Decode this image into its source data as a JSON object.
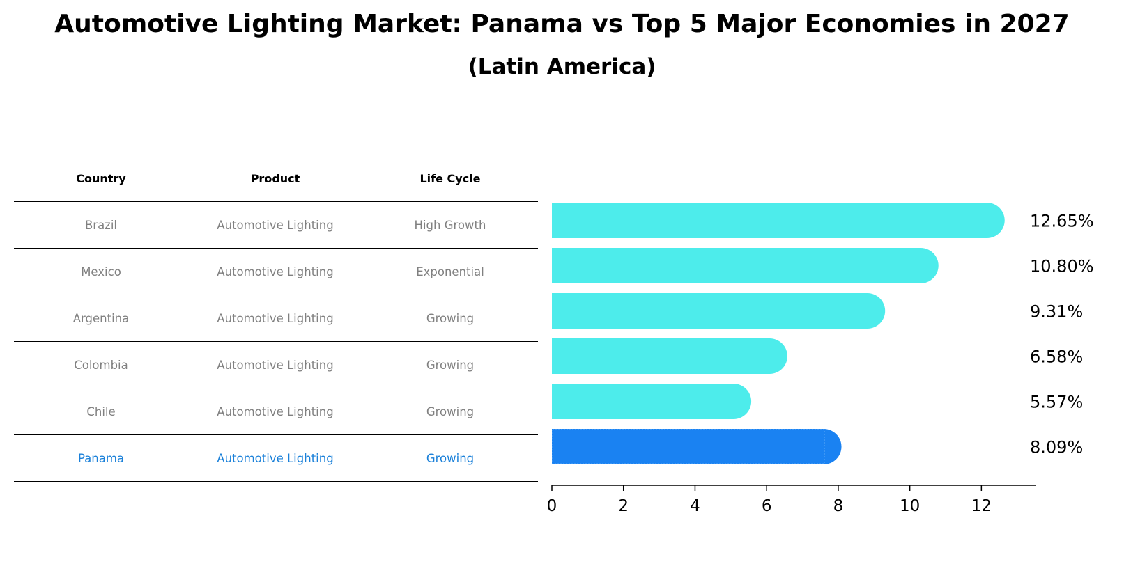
{
  "title": "Automotive Lighting Market: Panama vs Top 5 Major Economies in 2027",
  "subtitle": "(Latin America)",
  "table": {
    "headers": [
      "Country",
      "Product",
      "Life Cycle"
    ],
    "rows": [
      [
        "Brazil",
        "Automotive Lighting",
        "High Growth"
      ],
      [
        "Mexico",
        "Automotive Lighting",
        "Exponential"
      ],
      [
        "Argentina",
        "Automotive Lighting",
        "Growing"
      ],
      [
        "Colombia",
        "Automotive Lighting",
        "Growing"
      ],
      [
        "Chile",
        "Automotive Lighting",
        "Growing"
      ],
      [
        "Panama",
        "Automotive Lighting",
        "Growing"
      ]
    ],
    "highlight_row": 5
  },
  "colors": {
    "bar": "#4deceb",
    "highlight_bar": "#1a82f2",
    "highlight_text": "#1a80d9",
    "muted_text": "#808080"
  },
  "chart_data": {
    "type": "bar",
    "orientation": "horizontal",
    "categories": [
      "Brazil",
      "Mexico",
      "Argentina",
      "Colombia",
      "Chile",
      "Panama"
    ],
    "values": [
      12.65,
      10.8,
      9.31,
      6.58,
      5.57,
      8.09
    ],
    "data_labels": [
      "12.65%",
      "10.80%",
      "9.31%",
      "6.58%",
      "5.57%",
      "8.09%"
    ],
    "highlight_index": 5,
    "xlim": [
      0,
      13.2
    ],
    "xticks": [
      0,
      2,
      4,
      6,
      8,
      10,
      12
    ],
    "grid": false
  }
}
